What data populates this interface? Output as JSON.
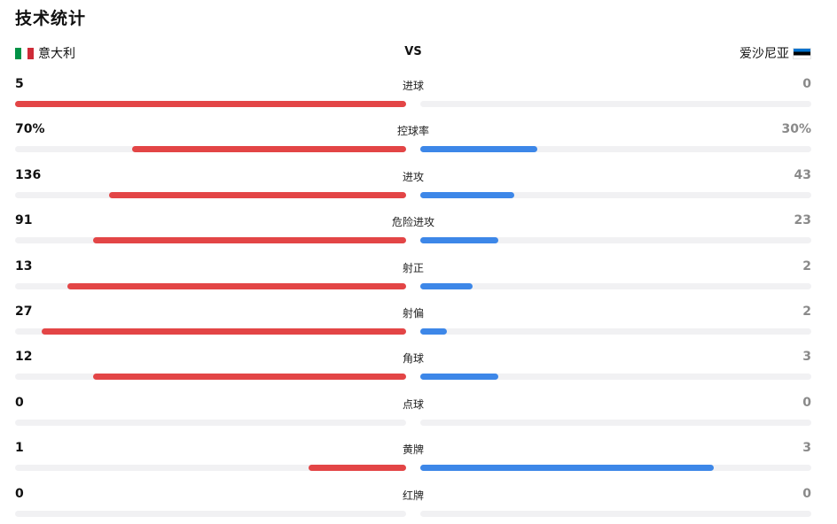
{
  "title": "技术统计",
  "teams": {
    "home": "意大利",
    "away": "爱沙尼亚",
    "vs": "VS"
  },
  "colors": {
    "home_bar": "#e34546",
    "away_bar": "#3d87e8",
    "track": "#f1f1f3"
  },
  "stats": [
    {
      "label": "进球",
      "home": "5",
      "away": "0",
      "home_ratio": 1.0,
      "away_ratio": 0.0
    },
    {
      "label": "控球率",
      "home": "70%",
      "away": "30%",
      "home_ratio": 0.7,
      "away_ratio": 0.3
    },
    {
      "label": "进攻",
      "home": "136",
      "away": "43",
      "home_ratio": 0.76,
      "away_ratio": 0.24
    },
    {
      "label": "危险进攻",
      "home": "91",
      "away": "23",
      "home_ratio": 0.8,
      "away_ratio": 0.2
    },
    {
      "label": "射正",
      "home": "13",
      "away": "2",
      "home_ratio": 0.867,
      "away_ratio": 0.133
    },
    {
      "label": "射偏",
      "home": "27",
      "away": "2",
      "home_ratio": 0.931,
      "away_ratio": 0.069
    },
    {
      "label": "角球",
      "home": "12",
      "away": "3",
      "home_ratio": 0.8,
      "away_ratio": 0.2
    },
    {
      "label": "点球",
      "home": "0",
      "away": "0",
      "home_ratio": 0.0,
      "away_ratio": 0.0
    },
    {
      "label": "黄牌",
      "home": "1",
      "away": "3",
      "home_ratio": 0.25,
      "away_ratio": 0.75
    },
    {
      "label": "红牌",
      "home": "0",
      "away": "0",
      "home_ratio": 0.0,
      "away_ratio": 0.0
    }
  ]
}
